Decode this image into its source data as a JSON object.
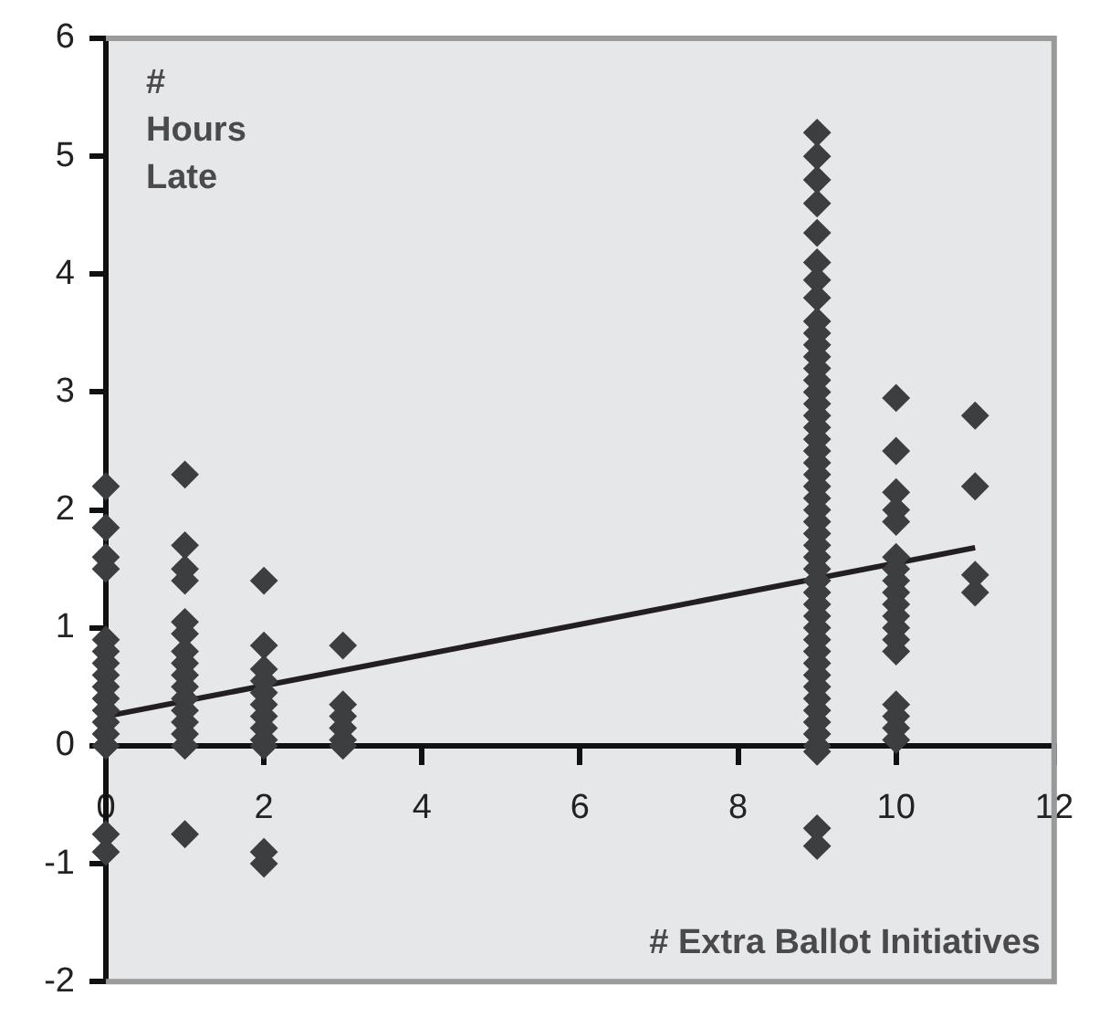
{
  "chart_data": {
    "type": "scatter",
    "xlabel": "# Extra Ballot Initiatives",
    "ylabel": "# Hours Late",
    "xlim": [
      0,
      12
    ],
    "xticks": [
      0,
      2,
      4,
      6,
      8,
      10,
      12
    ],
    "ylim": [
      -2,
      6
    ],
    "yticks": [
      -2,
      -1,
      0,
      1,
      2,
      3,
      4,
      5,
      6
    ],
    "grid": false,
    "legend": false,
    "marker": "diamond",
    "series": [
      {
        "color": "#3d3e40",
        "x": [
          0,
          0,
          0,
          0,
          0,
          0,
          0,
          0,
          0,
          0,
          0,
          0,
          0,
          0,
          0,
          0,
          1,
          1,
          1,
          1,
          1,
          1,
          1,
          1,
          1,
          1,
          1,
          1,
          1,
          1,
          1,
          1,
          2,
          2,
          2,
          2,
          2,
          2,
          2,
          2,
          2,
          2,
          2,
          2,
          3,
          3,
          3,
          3,
          3,
          3,
          9,
          9,
          9,
          9,
          9,
          9,
          9,
          9,
          9,
          9,
          9,
          9,
          9,
          9,
          9,
          9,
          9,
          9,
          9,
          9,
          9,
          9,
          9,
          9,
          9,
          9,
          9,
          9,
          9,
          9,
          9,
          9,
          9,
          9,
          9,
          9,
          9,
          9,
          9,
          9,
          9,
          9,
          9,
          9,
          9,
          9,
          9,
          9,
          10,
          10,
          10,
          10,
          10,
          10,
          10,
          10,
          10,
          10,
          10,
          10,
          10,
          10,
          10,
          10,
          10,
          10,
          11,
          11,
          11,
          11
        ],
        "values": [
          2.2,
          1.85,
          1.6,
          1.5,
          0.9,
          0.8,
          0.7,
          0.6,
          0.5,
          0.4,
          0.3,
          0.2,
          0.1,
          0,
          -0.75,
          -0.9,
          2.3,
          1.7,
          1.5,
          1.4,
          1.05,
          0.95,
          0.8,
          0.7,
          0.6,
          0.5,
          0.4,
          0.3,
          0.2,
          0.1,
          0,
          -0.75,
          1.4,
          0.85,
          0.65,
          0.55,
          0.45,
          0.35,
          0.25,
          0.15,
          0.05,
          0,
          -0.9,
          -1,
          0.85,
          0.35,
          0.25,
          0.15,
          0.05,
          0,
          5.2,
          5,
          4.8,
          4.6,
          4.35,
          4.1,
          3.95,
          3.8,
          3.6,
          3.5,
          3.4,
          3.3,
          3.2,
          3.1,
          3,
          2.9,
          2.8,
          2.7,
          2.6,
          2.5,
          2.4,
          2.3,
          2.2,
          2.1,
          2,
          1.9,
          1.8,
          1.7,
          1.6,
          1.5,
          1.4,
          1.3,
          1.2,
          1.1,
          1,
          0.9,
          0.8,
          0.7,
          0.6,
          0.5,
          0.4,
          0.3,
          0.2,
          0.1,
          0,
          -0.7,
          -0.85,
          -0.05,
          2.95,
          2.5,
          2.15,
          2,
          1.9,
          1.6,
          1.5,
          1.4,
          1.3,
          1.2,
          1.1,
          1,
          0.9,
          0.8,
          0.35,
          0.25,
          0.15,
          0.05,
          2.8,
          2.2,
          1.45,
          1.3
        ]
      },
      {
        "type": "line",
        "color": "#231f20",
        "marker": "none",
        "x": [
          0,
          11
        ],
        "values": [
          0.25,
          1.68
        ]
      }
    ]
  }
}
